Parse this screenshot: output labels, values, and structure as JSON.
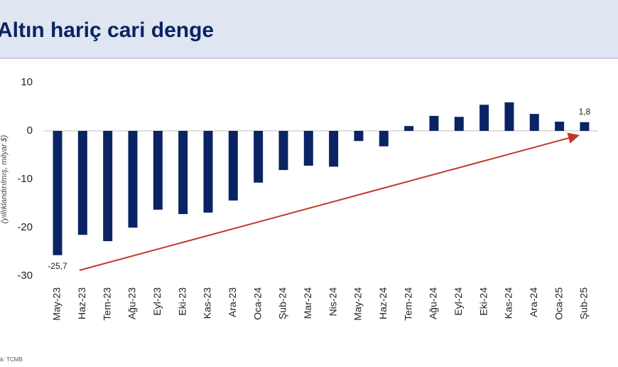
{
  "chart_data": {
    "type": "bar",
    "title": "Altın hariç cari denge",
    "y_label": "(yıllıklandırılmış, milyar $)",
    "source": "Kaynak: TCMB",
    "categories": [
      "May-23",
      "Haz-23",
      "Tem-23",
      "Ağu-23",
      "Eyl-23",
      "Eki-23",
      "Kas-23",
      "Ara-23",
      "Oca-24",
      "Şub-24",
      "Mar-24",
      "Nis-24",
      "May-24",
      "Haz-24",
      "Tem-24",
      "Ağu-24",
      "Eyl-24",
      "Eki-24",
      "Kas-24",
      "Ara-24",
      "Oca-25",
      "Şub-25"
    ],
    "values": [
      -25.7,
      -21.5,
      -22.8,
      -20,
      -16.3,
      -17.2,
      -16.9,
      -14.4,
      -10.7,
      -8.1,
      -7.2,
      -7.4,
      -2.1,
      -3.2,
      1.0,
      3.1,
      2.9,
      5.4,
      5.9,
      3.5,
      1.9,
      1.8
    ],
    "value_labels": [
      "-25,7",
      null,
      null,
      null,
      null,
      null,
      null,
      null,
      null,
      null,
      null,
      null,
      null,
      null,
      null,
      null,
      null,
      null,
      null,
      null,
      null,
      "1,8"
    ],
    "color": "#0a2463",
    "ylim": [
      -30,
      10
    ],
    "yticks": [
      10,
      0,
      -10,
      -20,
      -30
    ]
  }
}
